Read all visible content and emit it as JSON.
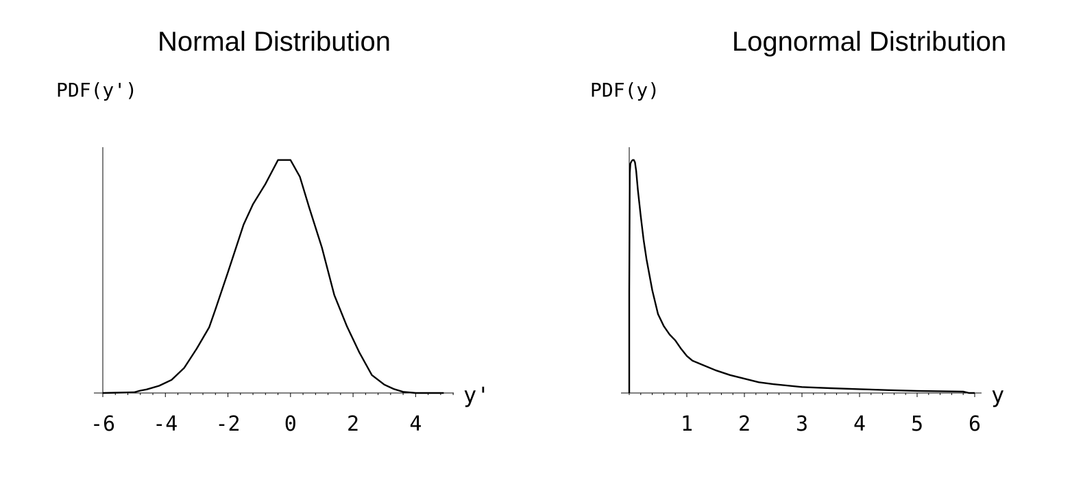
{
  "chart_data": [
    {
      "type": "line",
      "title": "Normal Distribution",
      "ylabel": "PDF(y')",
      "xlabel": "y'",
      "xlim": [
        -6,
        5
      ],
      "ylim": [
        0,
        1
      ],
      "xticks": [
        -6,
        -4,
        -2,
        0,
        2,
        4
      ],
      "xtick_labels": [
        "-6",
        "-4",
        "-2",
        "0",
        "2",
        "4"
      ],
      "minor_step": 0.4,
      "grid": false,
      "series": [
        {
          "x": [
            -6.0,
            -5.0,
            -4.8,
            -4.6,
            -4.2,
            -3.8,
            -3.4,
            -3.0,
            -2.6,
            -2.4,
            -2.0,
            -1.5,
            -1.2,
            -0.8,
            -0.4,
            0.0,
            0.3,
            0.6,
            1.0,
            1.4,
            1.8,
            2.2,
            2.6,
            3.0,
            3.3,
            3.6,
            4.0,
            4.4,
            4.9
          ],
          "y": [
            0.0,
            0.003,
            0.01,
            0.015,
            0.03,
            0.055,
            0.105,
            0.185,
            0.275,
            0.35,
            0.505,
            0.705,
            0.79,
            0.875,
            0.975,
            0.975,
            0.905,
            0.775,
            0.61,
            0.41,
            0.28,
            0.17,
            0.075,
            0.035,
            0.017,
            0.005,
            0.0,
            0.0,
            0.0
          ]
        }
      ]
    },
    {
      "type": "line",
      "title": "Lognormal Distribution",
      "ylabel": "PDF(y)",
      "xlabel": "y",
      "xlim": [
        0,
        6
      ],
      "ylim": [
        0,
        1
      ],
      "xticks": [
        1,
        2,
        3,
        4,
        5,
        6
      ],
      "xtick_labels": [
        "1",
        "2",
        "3",
        "4",
        "5",
        "6"
      ],
      "minor_step": 0.2,
      "grid": false,
      "series": [
        {
          "x": [
            0.0,
            0.0,
            0.01,
            0.02,
            0.04,
            0.06,
            0.08,
            0.1,
            0.12,
            0.15,
            0.2,
            0.25,
            0.3,
            0.4,
            0.5,
            0.6,
            0.7,
            0.8,
            0.9,
            1.0,
            1.1,
            1.25,
            1.5,
            1.75,
            2.0,
            2.25,
            2.5,
            3.0,
            3.5,
            4.0,
            4.5,
            5.0,
            5.5,
            5.8,
            5.9,
            6.0
          ],
          "y": [
            0.0,
            0.42,
            0.92,
            0.96,
            0.97,
            0.975,
            0.975,
            0.965,
            0.93,
            0.85,
            0.74,
            0.64,
            0.56,
            0.43,
            0.33,
            0.28,
            0.245,
            0.22,
            0.185,
            0.155,
            0.135,
            0.12,
            0.095,
            0.075,
            0.06,
            0.045,
            0.037,
            0.025,
            0.02,
            0.016,
            0.012,
            0.009,
            0.007,
            0.006,
            0.0,
            0.0
          ]
        }
      ]
    }
  ]
}
